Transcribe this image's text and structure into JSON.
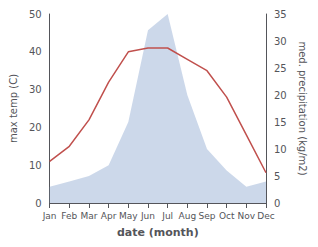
{
  "chart_data": {
    "type": "line",
    "xlabel": "date (month)",
    "ylabel": "max temp (C)",
    "y2label": "med. precipitation (kg/m2)",
    "categories": [
      "Jan",
      "Feb",
      "Mar",
      "Apr",
      "May",
      "Jun",
      "Jul",
      "Aug",
      "Sep",
      "Oct",
      "Nov",
      "Dec"
    ],
    "series": [
      {
        "type": "area",
        "color": "#8fa8d0",
        "axis": "y2",
        "values": [
          3,
          4,
          5,
          7,
          15,
          32,
          35,
          20,
          10,
          6,
          3,
          4
        ]
      },
      {
        "type": "line",
        "color": "#c0504d",
        "values": [
          11,
          15,
          22,
          32,
          40,
          41,
          41,
          38,
          35,
          28,
          18,
          8
        ]
      }
    ],
    "ylim": [
      0,
      50
    ],
    "yticks": [
      0,
      10,
      20,
      30,
      40,
      50
    ],
    "y2lim": [
      0,
      35
    ],
    "y2ticks": [
      0,
      5,
      10,
      15,
      20,
      25,
      30,
      35
    ],
    "grid": false
  }
}
